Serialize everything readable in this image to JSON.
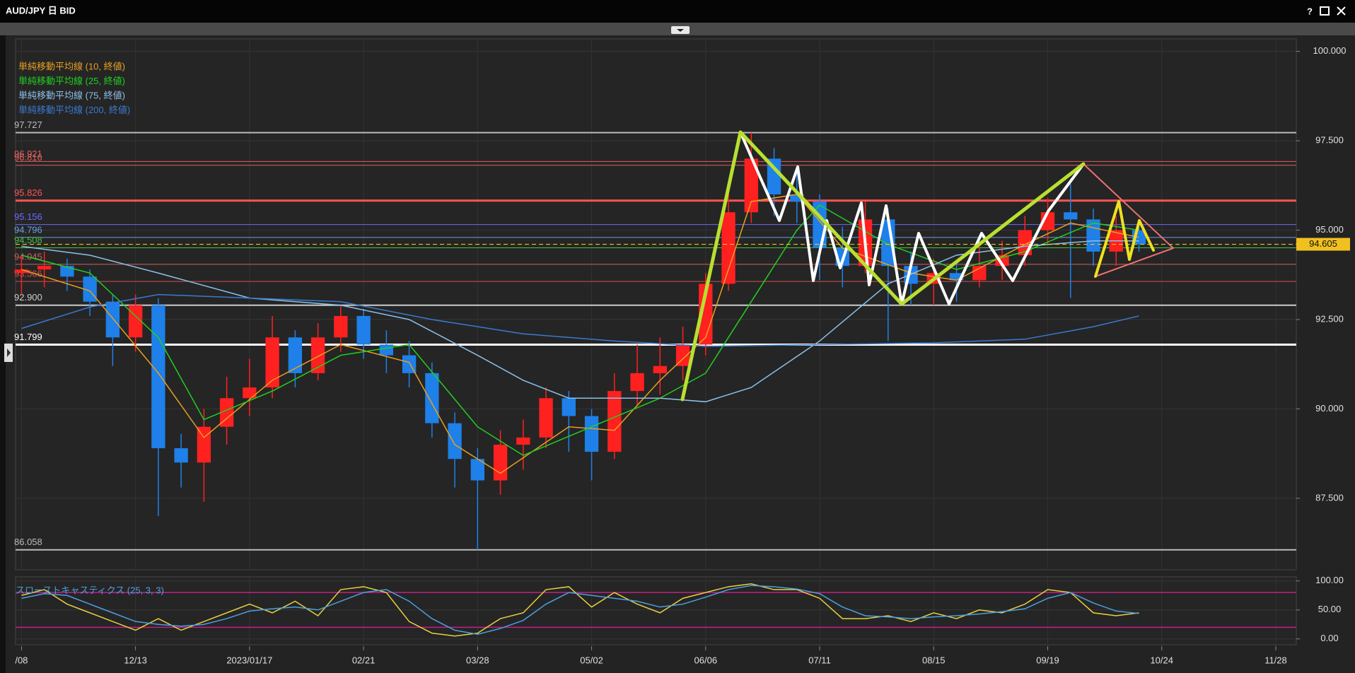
{
  "window": {
    "title": "AUD/JPY 日 BID",
    "help": "?"
  },
  "chart_data": [
    {
      "type": "candlestick",
      "x": [
        0,
        1,
        2,
        3,
        4,
        5,
        6,
        7,
        8,
        9,
        10,
        11,
        12,
        13,
        14,
        15,
        16,
        17,
        18,
        19,
        20,
        21,
        22,
        23,
        24,
        25,
        26,
        27,
        28,
        29,
        30,
        31,
        32,
        33,
        34,
        35,
        36,
        37,
        38,
        39,
        40,
        41,
        42,
        43,
        44,
        45,
        46,
        47,
        48,
        49
      ],
      "open": [
        93.8,
        93.9,
        94.0,
        93.7,
        93.0,
        92.0,
        92.9,
        88.9,
        88.5,
        89.5,
        90.3,
        90.6,
        92.0,
        91.0,
        92.0,
        92.6,
        91.8,
        91.5,
        91.0,
        89.6,
        88.6,
        88.0,
        89.0,
        89.2,
        90.3,
        89.8,
        88.8,
        90.5,
        91.0,
        91.2,
        91.8,
        93.5,
        95.5,
        97.0,
        96.0,
        95.8,
        94.5,
        94.0,
        95.3,
        94.0,
        93.5,
        93.8,
        93.6,
        94.0,
        94.3,
        95.0,
        95.5,
        95.3,
        94.4,
        95.0
      ],
      "high": [
        94.3,
        94.4,
        94.2,
        93.9,
        93.2,
        93.2,
        93.1,
        89.3,
        90.0,
        90.9,
        91.4,
        92.6,
        92.2,
        92.4,
        92.9,
        92.8,
        92.2,
        91.9,
        91.3,
        89.9,
        88.9,
        89.4,
        89.7,
        90.6,
        90.5,
        90.0,
        91.0,
        91.8,
        92.0,
        92.3,
        93.8,
        96.2,
        97.727,
        97.3,
        96.7,
        96.0,
        95.1,
        95.8,
        95.6,
        94.4,
        94.2,
        94.1,
        94.6,
        94.7,
        95.4,
        95.9,
        96.3,
        95.6,
        95.4,
        95.3
      ],
      "low": [
        93.2,
        93.4,
        93.3,
        92.6,
        91.2,
        91.6,
        87.0,
        87.8,
        87.4,
        89.0,
        89.8,
        90.3,
        90.6,
        90.8,
        91.6,
        91.4,
        91.0,
        90.6,
        89.2,
        87.8,
        86.058,
        87.6,
        88.3,
        88.9,
        88.8,
        88.0,
        88.6,
        90.1,
        90.4,
        90.8,
        91.5,
        93.3,
        95.2,
        95.4,
        95.2,
        93.6,
        93.4,
        93.8,
        91.9,
        92.9,
        92.9,
        93.0,
        93.4,
        93.6,
        94.0,
        94.6,
        93.1,
        94.0,
        94.0,
        94.4
      ],
      "close": [
        93.9,
        94.0,
        93.7,
        93.0,
        92.0,
        92.9,
        88.9,
        88.5,
        89.5,
        90.3,
        90.6,
        92.0,
        91.0,
        92.0,
        92.6,
        91.8,
        91.5,
        91.0,
        89.6,
        88.6,
        88.0,
        89.0,
        89.2,
        90.3,
        89.8,
        88.8,
        90.5,
        91.0,
        91.2,
        91.8,
        93.5,
        95.5,
        97.0,
        96.0,
        95.8,
        94.5,
        94.0,
        95.3,
        94.0,
        93.5,
        93.8,
        93.6,
        94.0,
        94.3,
        95.0,
        95.5,
        95.3,
        94.4,
        95.0,
        94.605
      ],
      "up_color": "#ff2020",
      "down_color": "#1e80e8",
      "series": [
        {
          "name": "単純移動平均線 (10, 終値)",
          "color": "#e8a020",
          "x": [
            0,
            3,
            6,
            8,
            11,
            14,
            17,
            19,
            21,
            24,
            26,
            28,
            30,
            32,
            34,
            36,
            39,
            41,
            44,
            46,
            49
          ],
          "values": [
            93.9,
            93.3,
            91.0,
            89.2,
            90.8,
            91.8,
            91.3,
            89.0,
            88.2,
            89.5,
            89.4,
            90.8,
            92.0,
            95.8,
            96.0,
            94.5,
            93.8,
            93.6,
            94.6,
            95.2,
            94.8
          ]
        },
        {
          "name": "単純移動平均線 (25, 終値)",
          "color": "#20d020",
          "x": [
            0,
            3,
            6,
            8,
            11,
            14,
            17,
            20,
            22,
            25,
            28,
            30,
            32,
            34,
            35,
            38,
            41,
            44,
            47,
            49
          ],
          "values": [
            94.3,
            93.8,
            92.0,
            89.7,
            90.5,
            91.5,
            91.8,
            89.5,
            88.7,
            89.5,
            90.3,
            91.0,
            93.0,
            95.0,
            95.7,
            94.6,
            93.9,
            94.4,
            95.2,
            95.0
          ]
        },
        {
          "name": "単純移動平均線 (75, 終値)",
          "color": "#8cc0e8",
          "x": [
            0,
            3,
            6,
            10,
            14,
            17,
            20,
            22,
            24,
            28,
            30,
            32,
            35,
            38,
            41,
            44,
            47,
            49
          ],
          "values": [
            94.55,
            94.3,
            93.8,
            93.1,
            92.9,
            92.5,
            91.5,
            90.8,
            90.3,
            90.3,
            90.2,
            90.6,
            91.9,
            93.5,
            94.3,
            94.55,
            94.7,
            94.7
          ]
        },
        {
          "name": "単純移動平均線 (200, 終値)",
          "color": "#3a7ad0",
          "x": [
            0,
            3,
            6,
            10,
            14,
            18,
            22,
            26,
            30,
            35,
            40,
            44,
            47,
            49
          ],
          "values": [
            92.25,
            92.85,
            93.2,
            93.1,
            93.0,
            92.5,
            92.1,
            91.9,
            91.75,
            91.8,
            91.85,
            91.95,
            92.3,
            92.6
          ]
        }
      ],
      "levels": [
        {
          "value": 97.727,
          "color": "#bbbbbb",
          "width": 2
        },
        {
          "value": 96.921,
          "color": "#e06060",
          "width": 1
        },
        {
          "value": 96.816,
          "color": "#e06060",
          "width": 1
        },
        {
          "value": 95.826,
          "color": "#ff5555",
          "width": 3
        },
        {
          "value": 95.156,
          "color": "#6a6aff",
          "width": 1
        },
        {
          "value": 94.796,
          "color": "#6aa0e0",
          "width": 1
        },
        {
          "value": 94.508,
          "color": "#40c040",
          "width": 1
        },
        {
          "value": 94.045,
          "color": "#d06060",
          "width": 1
        },
        {
          "value": 93.566,
          "color": "#d05050",
          "width": 1
        },
        {
          "value": 92.9,
          "label": "92.900",
          "color": "#cccccc",
          "width": 2
        },
        {
          "value": 91.799,
          "color": "#ffffff",
          "width": 3
        },
        {
          "value": 86.058,
          "color": "#bbbbbb",
          "width": 2
        }
      ],
      "last": 94.605,
      "last_color": "#f0c020",
      "xlim": [
        -0.26,
        55.9
      ],
      "ylim": [
        85.5,
        100.35
      ],
      "yticks": [
        {
          "value": 100,
          "label": "100.000"
        },
        {
          "value": 97.5,
          "label": "97.500"
        },
        {
          "value": 95,
          "label": "95.000"
        },
        {
          "value": 92.5,
          "label": "92.500"
        },
        {
          "value": 90,
          "label": "90.000"
        },
        {
          "value": 87.5,
          "label": "87.500"
        }
      ],
      "grid": true
    },
    {
      "type": "line",
      "title": "スローストキャスティクス (25, 3, 3)",
      "x": [
        0,
        1,
        2,
        3,
        4,
        5,
        6,
        7,
        8,
        9,
        10,
        11,
        12,
        13,
        14,
        15,
        16,
        17,
        18,
        19,
        20,
        21,
        22,
        23,
        24,
        25,
        26,
        27,
        28,
        29,
        30,
        31,
        32,
        33,
        34,
        35,
        36,
        37,
        38,
        39,
        40,
        41,
        42,
        43,
        44,
        45,
        46,
        47,
        48,
        49
      ],
      "series": [
        {
          "color": "#e8d040",
          "values": [
            75,
            85,
            60,
            45,
            30,
            15,
            35,
            15,
            30,
            45,
            60,
            45,
            65,
            40,
            85,
            90,
            80,
            30,
            10,
            5,
            10,
            35,
            45,
            85,
            90,
            55,
            80,
            60,
            45,
            70,
            80,
            90,
            95,
            85,
            85,
            70,
            35,
            35,
            40,
            30,
            45,
            35,
            50,
            45,
            60,
            85,
            80,
            45,
            40,
            45
          ]
        },
        {
          "color": "#4aa0e0",
          "values": [
            70,
            78,
            75,
            60,
            45,
            30,
            25,
            22,
            25,
            35,
            48,
            52,
            55,
            50,
            65,
            80,
            85,
            65,
            35,
            15,
            8,
            18,
            32,
            60,
            80,
            75,
            70,
            65,
            55,
            60,
            72,
            85,
            92,
            90,
            86,
            78,
            55,
            40,
            38,
            35,
            38,
            40,
            43,
            47,
            52,
            70,
            80,
            62,
            48,
            44
          ]
        }
      ],
      "levels": [
        {
          "value": 80,
          "color": "#c0208a",
          "width": 1.5
        },
        {
          "value": 20,
          "color": "#c0208a",
          "width": 1.5
        }
      ],
      "xlim": [
        -0.26,
        55.9
      ],
      "ylim": [
        -10,
        107
      ],
      "yticks": [
        {
          "value": 100,
          "label": "100.00"
        },
        {
          "value": 50,
          "label": "50.00"
        },
        {
          "value": 0,
          "label": "0.00"
        }
      ],
      "xticks": [
        {
          "value": 0,
          "label": "/08"
        },
        {
          "value": 5,
          "label": "12/13"
        },
        {
          "value": 10,
          "label": "2023/01/17"
        },
        {
          "value": 15,
          "label": "02/21"
        },
        {
          "value": 20,
          "label": "03/28"
        },
        {
          "value": 25,
          "label": "05/02"
        },
        {
          "value": 30,
          "label": "06/06"
        },
        {
          "value": 35,
          "label": "07/11"
        },
        {
          "value": 40,
          "label": "08/15"
        },
        {
          "value": 45,
          "label": "09/19"
        },
        {
          "value": 50,
          "label": "10/24"
        },
        {
          "value": 55,
          "label": "11/28"
        }
      ],
      "grid": true
    }
  ]
}
